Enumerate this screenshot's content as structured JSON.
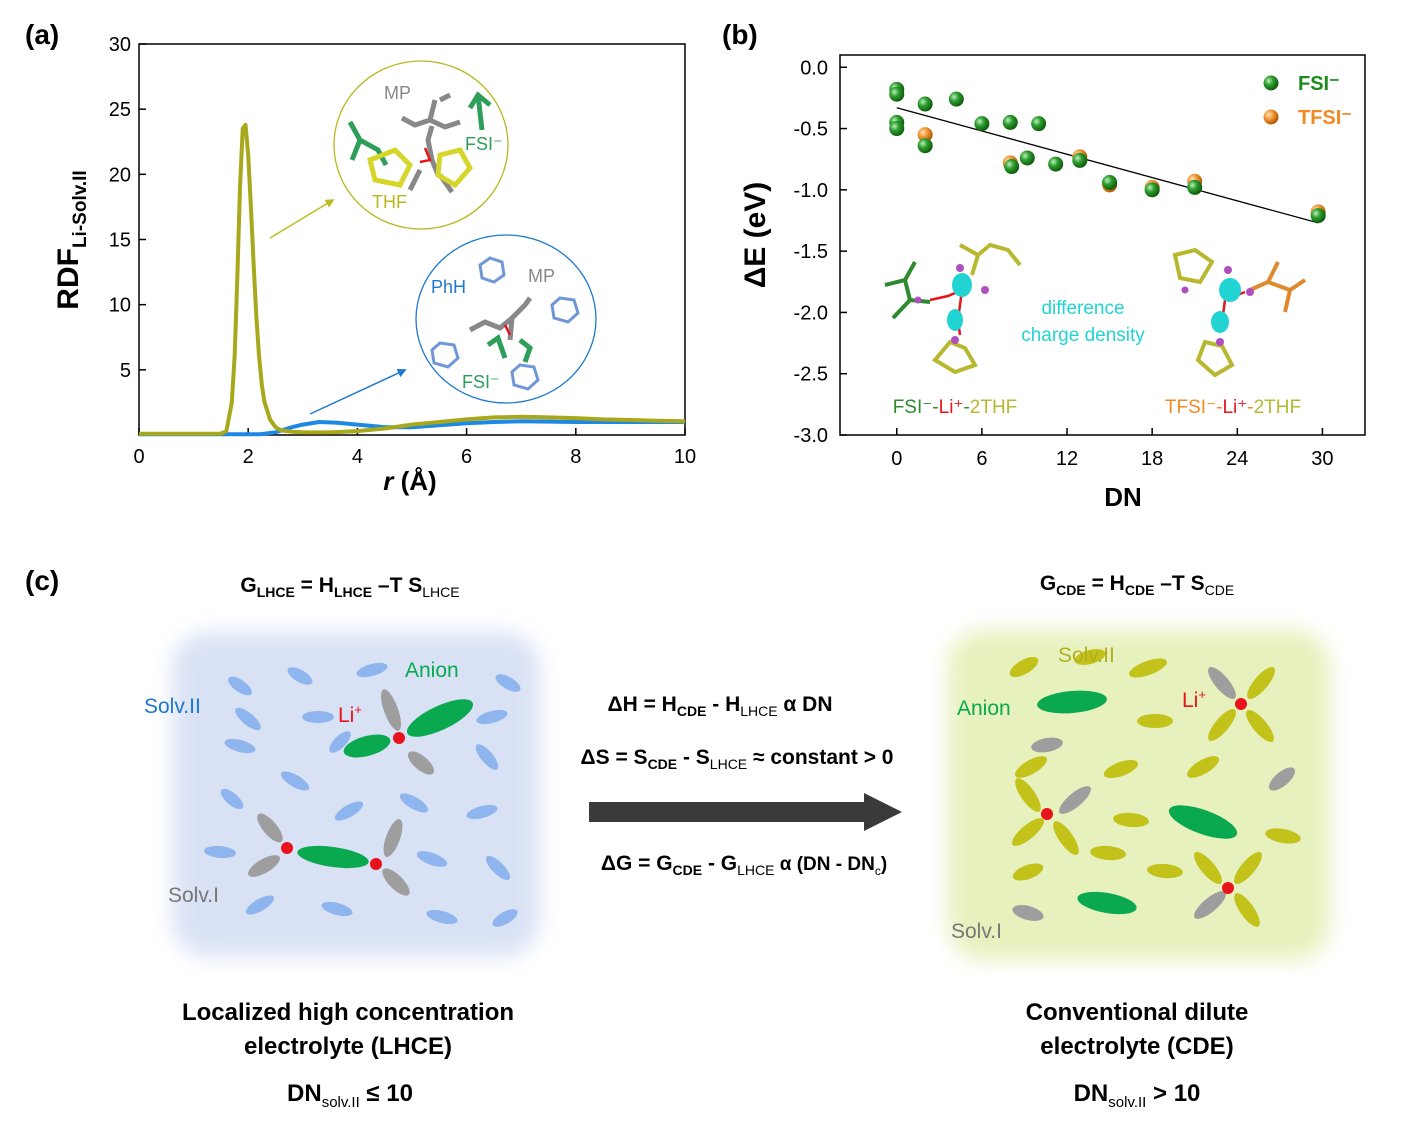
{
  "panel_labels": {
    "a": "(a)",
    "b": "(b)",
    "c": "(c)"
  },
  "colors": {
    "thf_olive": "#a8a81c",
    "phh_blue": "#1e88e5",
    "fsi_green": "#1e8a1e",
    "tfsi_orange": "#f08a24",
    "anion_green": "#0aa84f",
    "solv_gray": "#9e9e9e",
    "li_red": "#e8131b",
    "solv2_blue": "#8fb5ef",
    "solv2_olive": "#c2c21a",
    "cyan": "#22d3d3"
  },
  "chart_data": [
    {
      "type": "line",
      "panel": "(a)",
      "ylabel_main": "RDF",
      "ylabel_sub": "Li-Solv.II",
      "xlabel_italic": "r",
      "xlabel_unit": "(Å)",
      "xlim": [
        0,
        10
      ],
      "ylim": [
        0,
        30
      ],
      "xticks": [
        "0",
        "2",
        "4",
        "6",
        "8",
        "10"
      ],
      "yticks": [
        "5",
        "10",
        "15",
        "20",
        "25",
        "30"
      ],
      "series": [
        {
          "color": "#a8a81c",
          "x": [
            0,
            1.5,
            1.6,
            1.7,
            1.75,
            1.8,
            1.85,
            1.9,
            1.95,
            2.0,
            2.05,
            2.1,
            2.15,
            2.2,
            2.25,
            2.3,
            2.4,
            2.5,
            2.6,
            2.8,
            3.0,
            3.5,
            4.0,
            4.5,
            5.0,
            5.5,
            6.0,
            6.5,
            7.0,
            7.5,
            8.0,
            8.5,
            9.0,
            9.5,
            10.0
          ],
          "y": [
            0.1,
            0.1,
            0.3,
            2.5,
            6.0,
            12.0,
            19.0,
            23.5,
            23.8,
            21.5,
            17.5,
            13.0,
            9.0,
            6.0,
            3.8,
            2.5,
            1.2,
            0.6,
            0.35,
            0.25,
            0.2,
            0.2,
            0.3,
            0.5,
            0.8,
            1.0,
            1.2,
            1.35,
            1.4,
            1.35,
            1.3,
            1.2,
            1.15,
            1.1,
            1.05
          ]
        },
        {
          "color": "#1e88e5",
          "x": [
            0,
            2.2,
            2.5,
            2.8,
            3.0,
            3.3,
            3.6,
            4.0,
            4.5,
            5.0,
            5.5,
            6.0,
            6.5,
            7.0,
            8.0,
            9.0,
            10.0
          ],
          "y": [
            0.05,
            0.05,
            0.2,
            0.6,
            0.8,
            1.0,
            0.95,
            0.8,
            0.6,
            0.6,
            0.75,
            0.9,
            1.0,
            1.05,
            1.0,
            1.0,
            1.0
          ]
        }
      ],
      "insets": {
        "thf": {
          "MP": "MP",
          "FSI": "FSI⁻",
          "THF": "THF"
        },
        "phh": {
          "PhH": "PhH",
          "MP": "MP",
          "FSI": "FSI⁻"
        }
      }
    },
    {
      "type": "scatter",
      "panel": "(b)",
      "ylabel": "ΔE (eV)",
      "xlabel": "DN",
      "xlim": [
        -4,
        33
      ],
      "ylim": [
        -3.0,
        0.1
      ],
      "xticks": [
        "0",
        "6",
        "12",
        "18",
        "24",
        "30"
      ],
      "yticks": [
        "0.0",
        "-0.5",
        "-1.0",
        "-1.5",
        "-2.0",
        "-2.5",
        "-3.0"
      ],
      "legend_position": "top-right",
      "series": [
        {
          "name": "FSI⁻",
          "color": "#1e8a1e",
          "x": [
            0,
            0,
            0,
            0,
            2,
            2,
            4.2,
            6,
            8,
            8.1,
            9.2,
            10,
            11.2,
            12.9,
            15,
            18,
            21,
            29.7
          ],
          "y": [
            -0.18,
            -0.22,
            -0.45,
            -0.5,
            -0.3,
            -0.64,
            -0.26,
            -0.46,
            -0.45,
            -0.81,
            -0.74,
            -0.46,
            -0.79,
            -0.76,
            -0.94,
            -1.0,
            -0.98,
            -1.21
          ]
        },
        {
          "name": "TFSI⁻",
          "color": "#f08a24",
          "x": [
            2,
            8,
            12.9,
            15,
            18,
            21,
            29.7
          ],
          "y": [
            -0.55,
            -0.78,
            -0.73,
            -0.96,
            -0.98,
            -0.93,
            -1.18
          ]
        }
      ],
      "trend_line": {
        "x": [
          0,
          29.7
        ],
        "y": [
          -0.33,
          -1.27
        ]
      },
      "annotations": {
        "difference_1": "difference",
        "difference_2": "charge density",
        "fsi_complex": {
          "p1": "FSI⁻",
          "p2": "-",
          "p3": "Li⁺",
          "p4": "-",
          "p5": "2THF"
        },
        "tfsi_complex": {
          "p1": "TFSI⁻",
          "p2": "-",
          "p3": "Li⁺",
          "p4": "-",
          "p5": "2THF"
        }
      }
    }
  ],
  "panel_c": {
    "g_lhce": {
      "G": "G",
      "G_sub": "LHCE",
      "eq1": " = H",
      "H_sub": "LHCE",
      "eq2": " –T S",
      "S_sub": "LHCE"
    },
    "g_cde": {
      "G": "G",
      "G_sub": "CDE",
      "eq1": " = H",
      "H_sub": "CDE",
      "eq2": " –T S",
      "S_sub": "CDE"
    },
    "left_labels": {
      "anion": "Anion",
      "li": "Li",
      "li_sup": "+",
      "solv2": "Solv.II",
      "solv1": "Solv.I"
    },
    "right_labels": {
      "solv2": "Solv.II",
      "anion": "Anion",
      "li": "Li",
      "li_sup": "+",
      "solv1": "Solv.I"
    },
    "dH": {
      "a": "ΔH = H",
      "a_sub": "CDE",
      "b": " - H",
      "b_sub": "LHCE",
      "c": "  α  DN"
    },
    "dS": {
      "a": "ΔS = S",
      "a_sub": "CDE",
      "b": " - S",
      "b_sub": "LHCE",
      "c": " ≈ constant > 0"
    },
    "dG": {
      "a": "ΔG = G",
      "a_sub": "CDE",
      "b": " - G",
      "b_sub": "LHCE",
      "c": "  α  (DN - DN",
      "c_sub": "c",
      "d": ")"
    },
    "lhce_title_1": "Localized high concentration",
    "lhce_title_2": "electrolyte (LHCE)",
    "lhce_dn": {
      "a": "DN",
      "sub": "solv.II",
      "b": " ≤ 10"
    },
    "cde_title_1": "Conventional dilute",
    "cde_title_2": "electrolyte (CDE)",
    "cde_dn": {
      "a": "DN",
      "sub": "solv.II",
      "b": "  > 10"
    }
  }
}
